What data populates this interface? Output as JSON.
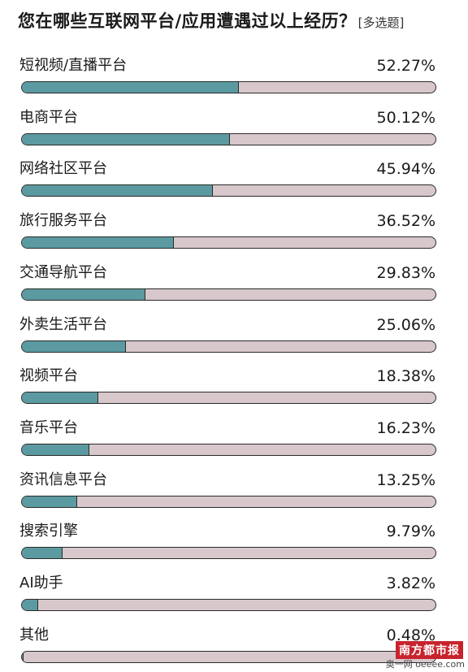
{
  "chart_data": {
    "type": "bar",
    "title": "您在哪些互联网平台/应用遭遇过以上经历？",
    "subtitle": "[多选题]",
    "categories": [
      "短视频/直播平台",
      "电商平台",
      "网络社区平台",
      "旅行服务平台",
      "交通导航平台",
      "外卖生活平台",
      "视频平台",
      "音乐平台",
      "资讯信息平台",
      "搜索引擎",
      "AI助手",
      "其他"
    ],
    "values": [
      52.27,
      50.12,
      45.94,
      36.52,
      29.83,
      25.06,
      18.38,
      16.23,
      13.25,
      9.79,
      3.82,
      0.48
    ],
    "value_labels": [
      "52.27%",
      "50.12%",
      "45.94%",
      "36.52%",
      "29.83%",
      "25.06%",
      "18.38%",
      "16.23%",
      "13.25%",
      "9.79%",
      "3.82%",
      "0.48%"
    ],
    "bar_scale_max": 100,
    "orientation": "horizontal",
    "fill_color": "#5a9aa0",
    "track_color": "#d8c8cb",
    "grid": false
  },
  "watermark": {
    "brand": "南方都市报",
    "site": "奥一网 oeeee.com"
  }
}
